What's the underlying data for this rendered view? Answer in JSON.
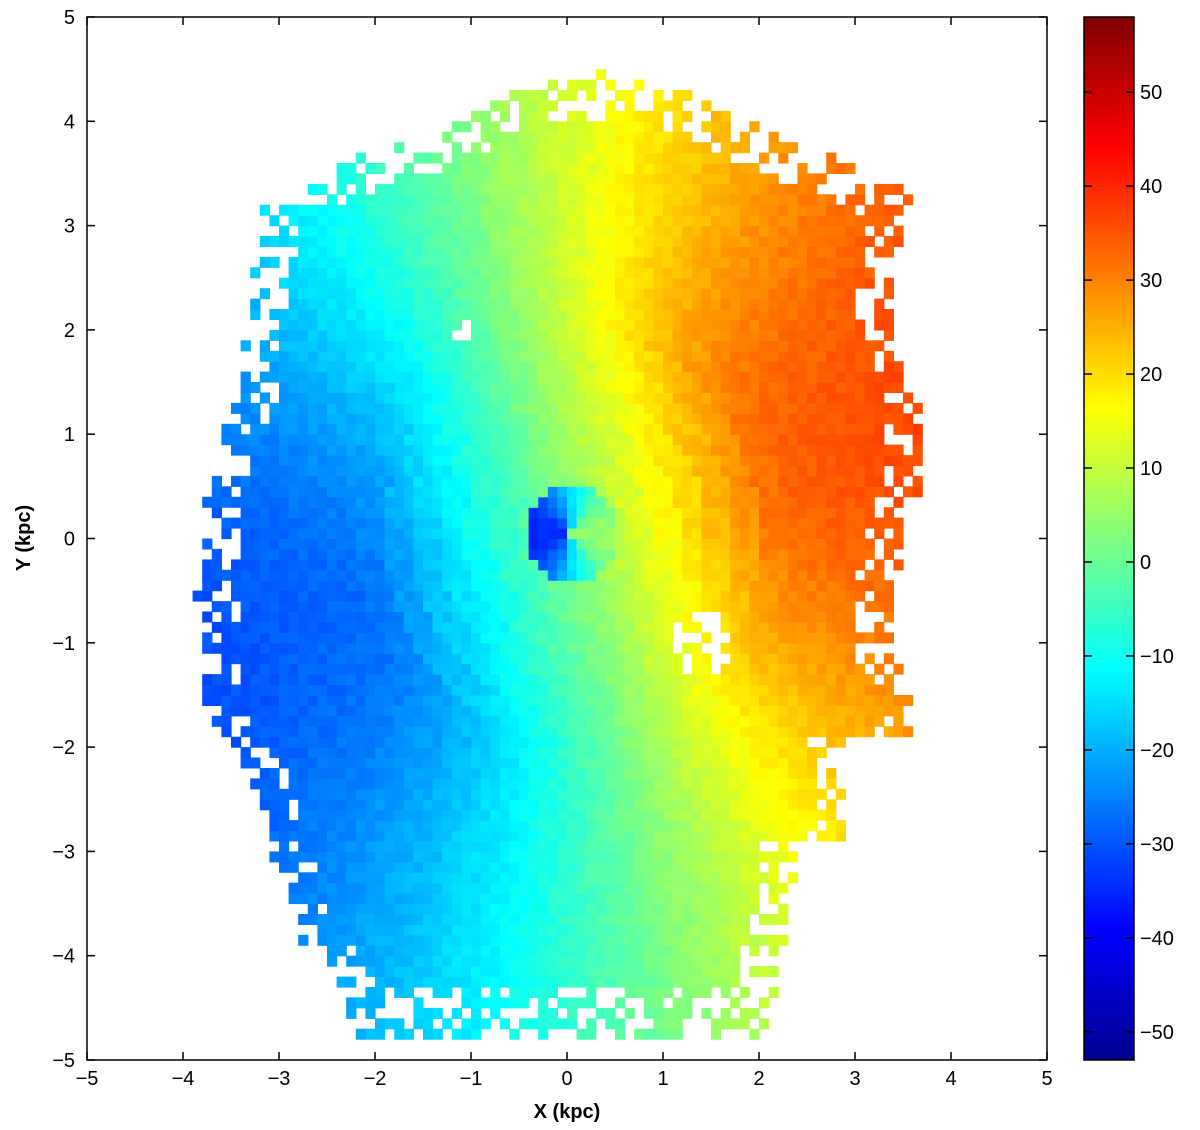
{
  "chart_data": {
    "type": "heatmap",
    "title": "",
    "xlabel": "X (kpc)",
    "ylabel": "Y (kpc)",
    "xlim": [
      -5,
      5
    ],
    "ylim": [
      -5,
      5
    ],
    "x_ticks": [
      "−5",
      "−4",
      "−3",
      "−2",
      "−1",
      "0",
      "1",
      "2",
      "3",
      "4",
      "5"
    ],
    "y_ticks": [
      "−5",
      "−4",
      "−3",
      "−2",
      "−1",
      "0",
      "1",
      "2",
      "3",
      "4",
      "5"
    ],
    "x_tick_values": [
      -5,
      -4,
      -3,
      -2,
      -1,
      0,
      1,
      2,
      3,
      4,
      5
    ],
    "y_tick_values": [
      -5,
      -4,
      -3,
      -2,
      -1,
      0,
      1,
      2,
      3,
      4,
      5
    ],
    "colorbar": {
      "colormap": "jet",
      "range": [
        -53,
        58
      ],
      "tick_values": [
        -50,
        -40,
        -30,
        -20,
        -10,
        0,
        10,
        20,
        30,
        40,
        50
      ],
      "tick_labels": [
        "−50",
        "−40",
        "−30",
        "−20",
        "−10",
        "0",
        "10",
        "20",
        "30",
        "40",
        "50"
      ]
    },
    "field": {
      "description_values": "line-of-sight velocity map of a rotating disk; values range about -25 (lower-left) to +40 (right edge)",
      "rotation_center": [
        0.05,
        0.05
      ],
      "kinematic_gradient_direction_deg": 0,
      "value_at_left_edge": -24,
      "value_at_right_edge": 35,
      "pixel_size_kpc": 0.1
    },
    "grid": false,
    "legend": "colorbar-right"
  }
}
